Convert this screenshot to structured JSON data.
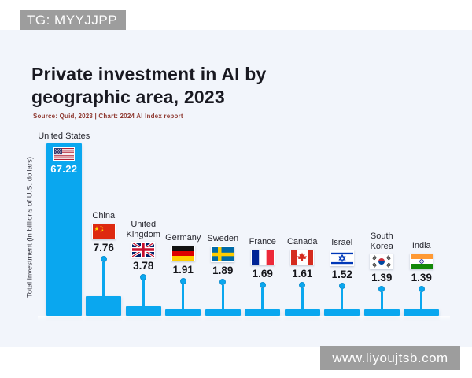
{
  "badges": {
    "top_left": "TG: MYYJJPP",
    "bottom_right": "www.liyoujtsb.com"
  },
  "chart": {
    "title": "Private investment in AI by geographic area, 2023",
    "source": "Source: Quid, 2023 | Chart: 2024 AI Index report",
    "y_axis_label": "Total investment (in billions of U.S. dollars)"
  },
  "chart_data": {
    "type": "bar",
    "title": "Private investment in AI by geographic area, 2023",
    "source": "Source: Quid, 2023 | Chart: 2024 AI Index report",
    "ylabel": "Total investment (in billions of U.S. dollars)",
    "xlabel": "",
    "categories": [
      "United States",
      "China",
      "United Kingdom",
      "Germany",
      "Sweden",
      "France",
      "Canada",
      "Israel",
      "South Korea",
      "India"
    ],
    "values": [
      67.22,
      7.76,
      3.78,
      1.91,
      1.89,
      1.69,
      1.61,
      1.52,
      1.39,
      1.39
    ],
    "value_labels": [
      "67.22",
      "7.76",
      "3.78",
      "1.91",
      "1.89",
      "1.69",
      "1.61",
      "1.52",
      "1.39",
      "1.39"
    ],
    "flag_icons": [
      "us-flag-icon",
      "china-flag-icon",
      "uk-flag-icon",
      "germany-flag-icon",
      "sweden-flag-icon",
      "france-flag-icon",
      "canada-flag-icon",
      "israel-flag-icon",
      "south-korea-flag-icon",
      "india-flag-icon"
    ],
    "ylim": [
      0,
      70
    ],
    "grid": false,
    "legend": "none",
    "bar_color": "#0aa7ef"
  },
  "colors": {
    "bar": "#0aa7ef",
    "panel_background": "#f2f5fb",
    "page_background": "#ffffff",
    "badge_gray": "#9d9d9d",
    "title_text": "#191921",
    "source_text": "#8f3a32"
  }
}
